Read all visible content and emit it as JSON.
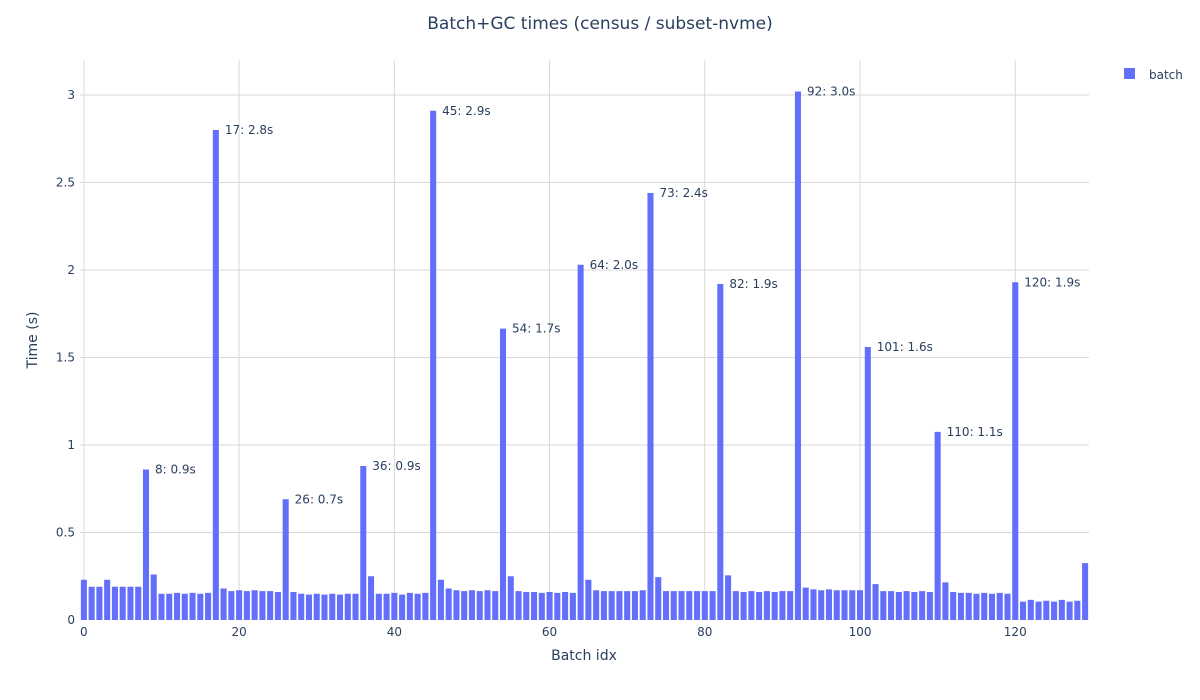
{
  "chart_data": {
    "type": "bar",
    "title": "Batch+GC times (census / subset-nvme)",
    "xlabel": "Batch idx",
    "ylabel": "Time (s)",
    "xlim": [
      -0.5,
      129.5
    ],
    "ylim": [
      0,
      3.2
    ],
    "xticks": [
      0,
      20,
      40,
      60,
      80,
      100,
      120
    ],
    "yticks": [
      0,
      0.5,
      1,
      1.5,
      2,
      2.5,
      3
    ],
    "ytick_labels": [
      "0",
      "0.5",
      "1",
      "1.5",
      "2",
      "2.5",
      "3"
    ],
    "grid": true,
    "legend_position": "top-right",
    "series": [
      {
        "name": "batch",
        "color": "#636efa",
        "values": [
          0.23,
          0.19,
          0.19,
          0.23,
          0.19,
          0.19,
          0.19,
          0.19,
          0.86,
          0.26,
          0.15,
          0.15,
          0.155,
          0.15,
          0.155,
          0.15,
          0.155,
          2.8,
          0.18,
          0.165,
          0.17,
          0.165,
          0.17,
          0.165,
          0.165,
          0.16,
          0.69,
          0.16,
          0.15,
          0.145,
          0.15,
          0.145,
          0.15,
          0.145,
          0.15,
          0.15,
          0.88,
          0.25,
          0.15,
          0.15,
          0.155,
          0.145,
          0.155,
          0.15,
          0.155,
          2.91,
          0.23,
          0.18,
          0.17,
          0.165,
          0.17,
          0.165,
          0.17,
          0.165,
          1.665,
          0.25,
          0.165,
          0.16,
          0.16,
          0.155,
          0.16,
          0.155,
          0.16,
          0.155,
          2.03,
          0.23,
          0.17,
          0.165,
          0.165,
          0.165,
          0.165,
          0.165,
          0.17,
          2.44,
          0.245,
          0.165,
          0.165,
          0.165,
          0.165,
          0.165,
          0.165,
          0.165,
          1.92,
          0.255,
          0.165,
          0.16,
          0.165,
          0.16,
          0.165,
          0.16,
          0.165,
          0.165,
          3.02,
          0.185,
          0.175,
          0.17,
          0.175,
          0.17,
          0.17,
          0.17,
          0.17,
          1.56,
          0.205,
          0.165,
          0.165,
          0.16,
          0.165,
          0.16,
          0.165,
          0.16,
          1.075,
          0.215,
          0.16,
          0.155,
          0.155,
          0.15,
          0.155,
          0.15,
          0.155,
          0.15,
          1.93,
          0.105,
          0.115,
          0.105,
          0.11,
          0.105,
          0.115,
          0.105,
          0.11,
          0.325
        ]
      }
    ],
    "annotations": [
      {
        "x": 8,
        "y": 0.86,
        "text": "8: 0.9s"
      },
      {
        "x": 17,
        "y": 2.8,
        "text": "17: 2.8s"
      },
      {
        "x": 26,
        "y": 0.69,
        "text": "26: 0.7s"
      },
      {
        "x": 36,
        "y": 0.88,
        "text": "36: 0.9s"
      },
      {
        "x": 45,
        "y": 2.91,
        "text": "45: 2.9s"
      },
      {
        "x": 54,
        "y": 1.665,
        "text": "54: 1.7s"
      },
      {
        "x": 64,
        "y": 2.03,
        "text": "64: 2.0s"
      },
      {
        "x": 73,
        "y": 2.44,
        "text": "73: 2.4s"
      },
      {
        "x": 82,
        "y": 1.92,
        "text": "82: 1.9s"
      },
      {
        "x": 92,
        "y": 3.02,
        "text": "92: 3.0s"
      },
      {
        "x": 101,
        "y": 1.56,
        "text": "101: 1.6s"
      },
      {
        "x": 110,
        "y": 1.075,
        "text": "110: 1.1s"
      },
      {
        "x": 120,
        "y": 1.93,
        "text": "120: 1.9s"
      }
    ]
  }
}
